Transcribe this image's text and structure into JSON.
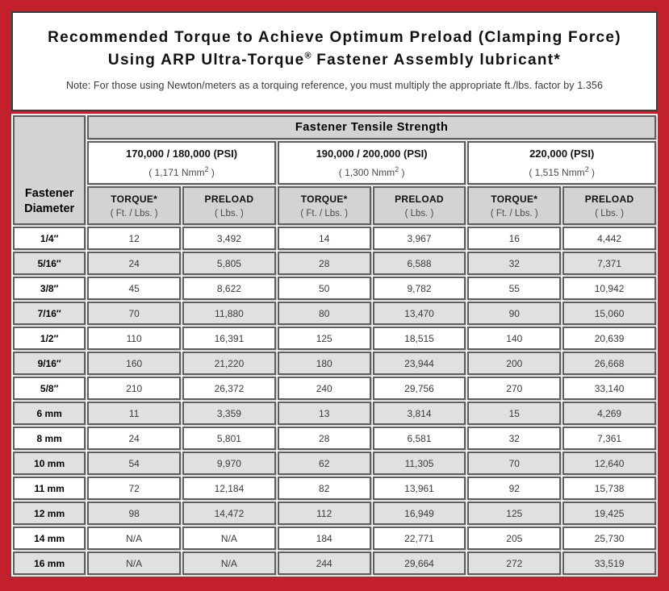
{
  "header": {
    "title_line1": "Recommended Torque to Achieve Optimum Preload (Clamping Force)",
    "title_line2_pre": "Using ARP Ultra-Torque",
    "title_line2_reg": "®",
    "title_line2_post": " Fastener Assembly lubricant*",
    "note": "Note: For those using Newton/meters as a torquing reference, you must multiply the appropriate ft./lbs. factor by 1.356"
  },
  "table": {
    "tensile_strength_label": "Fastener Tensile Strength",
    "diameter_label_line1": "Fastener",
    "diameter_label_line2": "Diameter",
    "torque_label": "TORQUE*",
    "torque_unit": "( Ft. / Lbs. )",
    "preload_label": "PRELOAD",
    "preload_unit": "( Lbs. )",
    "groups": [
      {
        "psi": "170,000 / 180,000 (PSI)",
        "nmm_prefix": "( 1,171 Nmm",
        "nmm_sup": "2",
        "nmm_suffix": " )"
      },
      {
        "psi": "190,000 / 200,000 (PSI)",
        "nmm_prefix": "( 1,300 Nmm",
        "nmm_sup": "2",
        "nmm_suffix": " )"
      },
      {
        "psi": "220,000 (PSI)",
        "nmm_prefix": "( 1,515 Nmm",
        "nmm_sup": "2",
        "nmm_suffix": " )"
      }
    ],
    "rows": [
      {
        "diameter": "1/4″",
        "values": [
          "12",
          "3,492",
          "14",
          "3,967",
          "16",
          "4,442"
        ]
      },
      {
        "diameter": "5/16″",
        "values": [
          "24",
          "5,805",
          "28",
          "6,588",
          "32",
          "7,371"
        ]
      },
      {
        "diameter": "3/8″",
        "values": [
          "45",
          "8,622",
          "50",
          "9,782",
          "55",
          "10,942"
        ]
      },
      {
        "diameter": "7/16″",
        "values": [
          "70",
          "11,880",
          "80",
          "13,470",
          "90",
          "15,060"
        ]
      },
      {
        "diameter": "1/2″",
        "values": [
          "110",
          "16,391",
          "125",
          "18,515",
          "140",
          "20,639"
        ]
      },
      {
        "diameter": "9/16″",
        "values": [
          "160",
          "21,220",
          "180",
          "23,944",
          "200",
          "26,668"
        ]
      },
      {
        "diameter": "5/8″",
        "values": [
          "210",
          "26,372",
          "240",
          "29,756",
          "270",
          "33,140"
        ]
      },
      {
        "diameter": "6 mm",
        "values": [
          "11",
          "3,359",
          "13",
          "3,814",
          "15",
          "4,269"
        ]
      },
      {
        "diameter": "8 mm",
        "values": [
          "24",
          "5,801",
          "28",
          "6,581",
          "32",
          "7,361"
        ]
      },
      {
        "diameter": "10 mm",
        "values": [
          "54",
          "9,970",
          "62",
          "11,305",
          "70",
          "12,640"
        ]
      },
      {
        "diameter": "11 mm",
        "values": [
          "72",
          "12,184",
          "82",
          "13,961",
          "92",
          "15,738"
        ]
      },
      {
        "diameter": "12 mm",
        "values": [
          "98",
          "14,472",
          "112",
          "16,949",
          "125",
          "19,425"
        ]
      },
      {
        "diameter": "14 mm",
        "values": [
          "N/A",
          "N/A",
          "184",
          "22,771",
          "205",
          "25,730"
        ]
      },
      {
        "diameter": "16 mm",
        "values": [
          "N/A",
          "N/A",
          "244",
          "29,664",
          "272",
          "33,519"
        ]
      }
    ]
  },
  "colors": {
    "frame_red": "#c2202a",
    "header_gray": "#d3d3d3",
    "row_shade_gray": "#e0e0e0",
    "cell_border": "#5e5e5e"
  }
}
